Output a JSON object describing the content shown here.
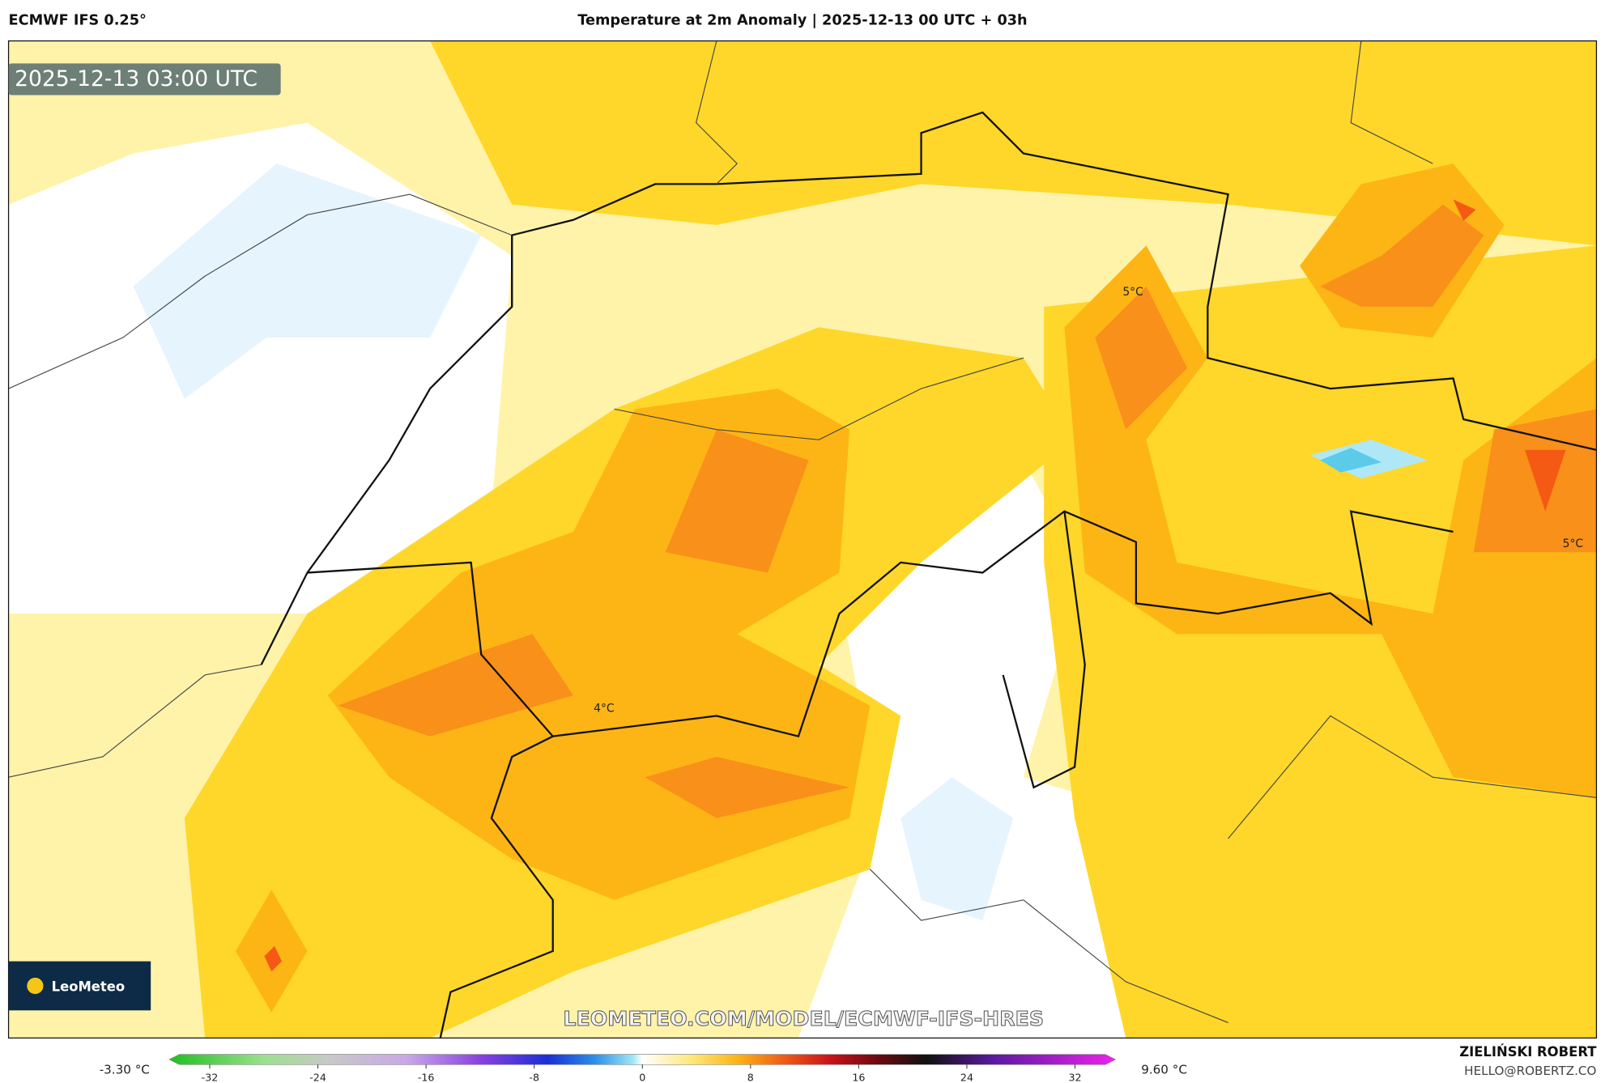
{
  "header": {
    "model": "ECMWF IFS 0.25°",
    "title": "Temperature at 2m Anomaly | 2025-12-13 00 UTC + 03h"
  },
  "map": {
    "timestamp": "2025-12-13 03:00 UTC",
    "labels": [
      "5°C",
      "5°C",
      "4°C"
    ],
    "watermark": "LEOMETEO.COM/MODEL/ECMWF-IFS-HRES",
    "logo": "LeoMeteo"
  },
  "colorbar": {
    "min_label": "-3.30 °C",
    "max_label": "9.60 °C",
    "range": [
      -35,
      35
    ],
    "ticks": [
      -32,
      -24,
      -16,
      -8,
      0,
      8,
      16,
      24,
      32
    ]
  },
  "footer": {
    "author": "ZIELIŃSKI ROBERT",
    "email": "HELLO@ROBERTZ.CO"
  }
}
